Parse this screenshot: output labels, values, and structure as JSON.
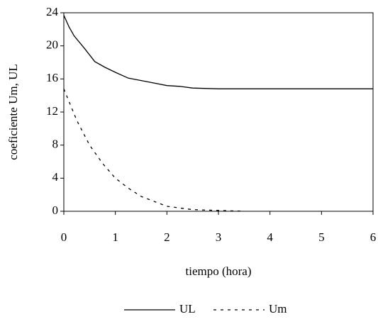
{
  "chart_data": {
    "type": "line",
    "xlabel": "tiempo (hora)",
    "ylabel": "coeficiente Um, UL",
    "xlim": [
      0,
      6
    ],
    "xticks": [
      0,
      1,
      2,
      3,
      4,
      5,
      6
    ],
    "ylim": [
      0,
      24
    ],
    "yticks": [
      0,
      4,
      8,
      12,
      16,
      20,
      24
    ],
    "series": [
      {
        "name": "UL",
        "color": "#000000",
        "dash": false,
        "x": [
          0,
          0.1,
          0.2,
          0.4,
          0.6,
          0.8,
          1.0,
          1.25,
          1.5,
          1.75,
          2.0,
          2.25,
          2.5,
          3.0,
          3.5,
          4.0,
          5.0,
          6.0
        ],
        "values": [
          23.7,
          22.3,
          21.2,
          19.7,
          18.1,
          17.4,
          16.8,
          16.1,
          15.8,
          15.5,
          15.2,
          15.1,
          14.9,
          14.8,
          14.8,
          14.8,
          14.8,
          14.8
        ]
      },
      {
        "name": "Um",
        "color": "#000000",
        "dash": true,
        "x": [
          0,
          0.25,
          0.5,
          0.75,
          1.0,
          1.25,
          1.5,
          2.0,
          2.5,
          3.0,
          3.5
        ],
        "values": [
          14.8,
          11.0,
          8.0,
          5.8,
          4.0,
          2.8,
          1.8,
          0.6,
          0.2,
          0.1,
          0.0
        ]
      }
    ]
  }
}
